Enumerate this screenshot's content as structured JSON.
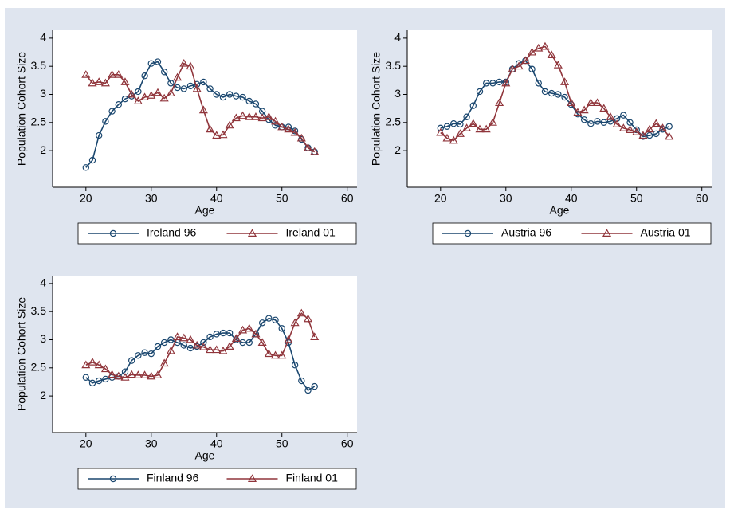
{
  "chart_data": [
    {
      "type": "line",
      "x_label": "Age",
      "y_label": "Population Cohort Size",
      "x": [
        20,
        21,
        22,
        23,
        24,
        25,
        26,
        27,
        28,
        29,
        30,
        31,
        32,
        33,
        34,
        35,
        36,
        37,
        38,
        39,
        40,
        41,
        42,
        43,
        44,
        45,
        46,
        47,
        48,
        49,
        50,
        51,
        52,
        53,
        54,
        55
      ],
      "xlim": [
        14.9,
        61.5
      ],
      "ylim": [
        1.35,
        4.14
      ],
      "xticks": [
        20,
        30,
        40,
        50,
        60
      ],
      "yticks": [
        2,
        2.5,
        3,
        3.5,
        4
      ],
      "series": [
        {
          "name": "Ireland 96",
          "color": "#1a476f",
          "marker": "circle",
          "values": [
            1.7,
            1.83,
            2.27,
            2.52,
            2.7,
            2.82,
            2.92,
            2.97,
            3.05,
            3.33,
            3.55,
            3.58,
            3.4,
            3.2,
            3.12,
            3.1,
            3.15,
            3.18,
            3.22,
            3.1,
            3.0,
            2.95,
            3.0,
            2.97,
            2.95,
            2.88,
            2.83,
            2.7,
            2.55,
            2.45,
            2.42,
            2.42,
            2.35,
            2.2,
            2.05,
            1.98
          ]
        },
        {
          "name": "Ireland 01",
          "color": "#90353b",
          "marker": "triangle",
          "values": [
            3.35,
            3.2,
            3.22,
            3.2,
            3.35,
            3.35,
            3.22,
            3.0,
            2.88,
            2.95,
            2.98,
            3.03,
            2.93,
            3.02,
            3.3,
            3.55,
            3.5,
            3.1,
            2.72,
            2.38,
            2.27,
            2.28,
            2.45,
            2.58,
            2.62,
            2.6,
            2.6,
            2.58,
            2.6,
            2.52,
            2.42,
            2.38,
            2.32,
            2.22,
            2.05,
            1.98
          ]
        }
      ]
    },
    {
      "type": "line",
      "x_label": "Age",
      "y_label": "Population Cohort Size",
      "x": [
        20,
        21,
        22,
        23,
        24,
        25,
        26,
        27,
        28,
        29,
        30,
        31,
        32,
        33,
        34,
        35,
        36,
        37,
        38,
        39,
        40,
        41,
        42,
        43,
        44,
        45,
        46,
        47,
        48,
        49,
        50,
        51,
        52,
        53,
        54,
        55
      ],
      "xlim": [
        14.9,
        61.5
      ],
      "ylim": [
        1.35,
        4.14
      ],
      "xticks": [
        20,
        30,
        40,
        50,
        60
      ],
      "yticks": [
        2,
        2.5,
        3,
        3.5,
        4
      ],
      "series": [
        {
          "name": "Austria 96",
          "color": "#1a476f",
          "marker": "circle",
          "values": [
            2.4,
            2.43,
            2.48,
            2.47,
            2.6,
            2.8,
            3.05,
            3.2,
            3.2,
            3.22,
            3.22,
            3.45,
            3.55,
            3.6,
            3.45,
            3.2,
            3.05,
            3.02,
            3.0,
            2.95,
            2.82,
            2.65,
            2.55,
            2.48,
            2.52,
            2.5,
            2.52,
            2.57,
            2.63,
            2.5,
            2.37,
            2.25,
            2.27,
            2.3,
            2.38,
            2.43
          ]
        },
        {
          "name": "Austria 01",
          "color": "#90353b",
          "marker": "triangle",
          "values": [
            2.32,
            2.22,
            2.18,
            2.3,
            2.4,
            2.48,
            2.38,
            2.38,
            2.5,
            2.85,
            3.2,
            3.45,
            3.5,
            3.6,
            3.75,
            3.82,
            3.85,
            3.7,
            3.52,
            3.22,
            2.85,
            2.68,
            2.72,
            2.85,
            2.85,
            2.75,
            2.6,
            2.47,
            2.4,
            2.37,
            2.33,
            2.27,
            2.38,
            2.48,
            2.4,
            2.25
          ]
        }
      ]
    },
    {
      "type": "line",
      "x_label": "Age",
      "y_label": "Population Cohort Size",
      "x": [
        20,
        21,
        22,
        23,
        24,
        25,
        26,
        27,
        28,
        29,
        30,
        31,
        32,
        33,
        34,
        35,
        36,
        37,
        38,
        39,
        40,
        41,
        42,
        43,
        44,
        45,
        46,
        47,
        48,
        49,
        50,
        51,
        52,
        53,
        54,
        55
      ],
      "xlim": [
        14.9,
        61.5
      ],
      "ylim": [
        1.35,
        4.14
      ],
      "xticks": [
        20,
        30,
        40,
        50,
        60
      ],
      "yticks": [
        2,
        2.5,
        3,
        3.5,
        4
      ],
      "series": [
        {
          "name": "Finland 96",
          "color": "#1a476f",
          "marker": "circle",
          "values": [
            2.33,
            2.23,
            2.27,
            2.3,
            2.33,
            2.35,
            2.43,
            2.63,
            2.72,
            2.77,
            2.75,
            2.88,
            2.95,
            3.0,
            2.95,
            2.9,
            2.85,
            2.88,
            2.95,
            3.05,
            3.1,
            3.12,
            3.12,
            3.0,
            2.95,
            2.95,
            3.1,
            3.3,
            3.38,
            3.35,
            3.2,
            2.95,
            2.55,
            2.27,
            2.1,
            2.17
          ]
        },
        {
          "name": "Finland 01",
          "color": "#90353b",
          "marker": "triangle",
          "values": [
            2.55,
            2.6,
            2.55,
            2.48,
            2.38,
            2.35,
            2.33,
            2.38,
            2.37,
            2.37,
            2.35,
            2.37,
            2.58,
            2.8,
            3.05,
            3.03,
            3.0,
            2.9,
            2.87,
            2.82,
            2.82,
            2.8,
            2.88,
            3.02,
            3.17,
            3.2,
            3.1,
            2.95,
            2.75,
            2.72,
            2.72,
            3.0,
            3.3,
            3.47,
            3.37,
            3.05
          ]
        }
      ]
    }
  ]
}
